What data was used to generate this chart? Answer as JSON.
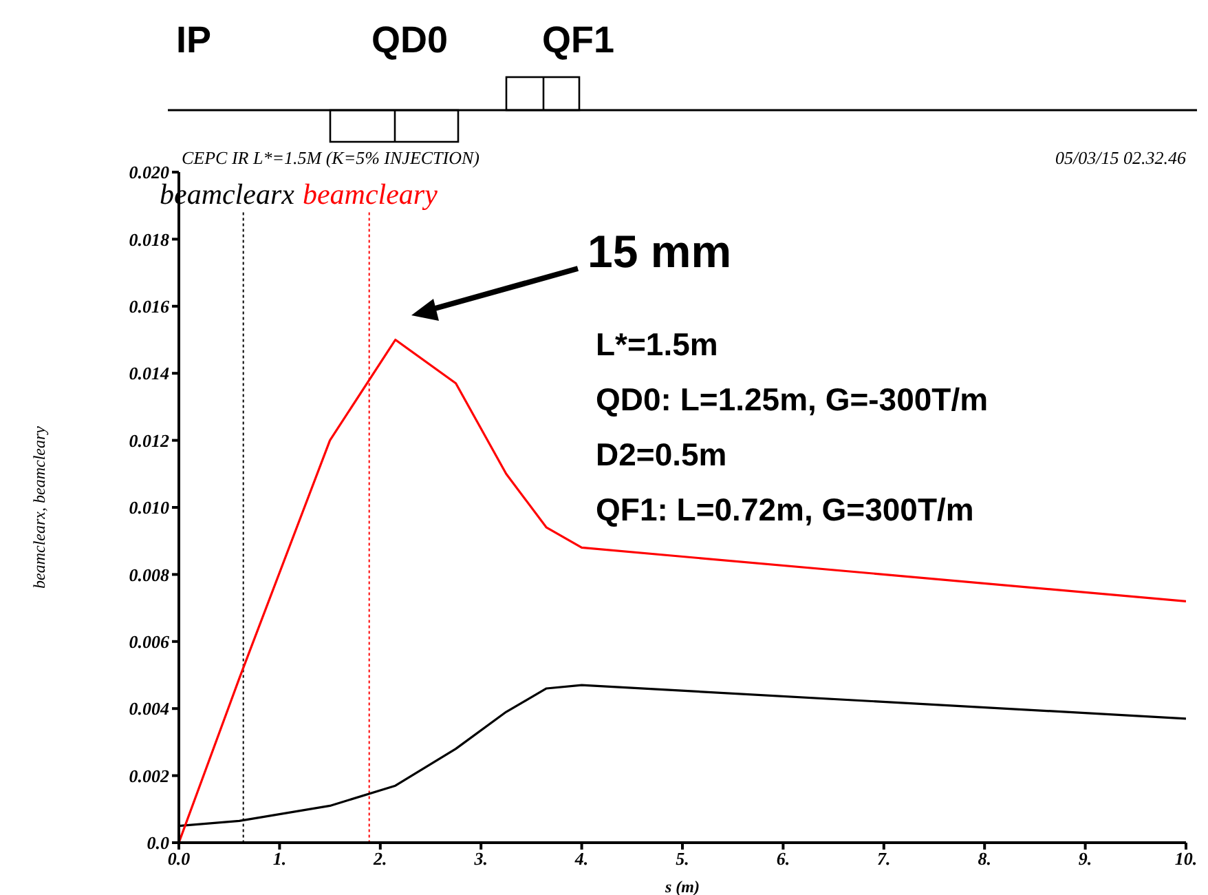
{
  "chart_data": {
    "type": "line",
    "title": "CEPC IR L*=1.5M (K=5% INJECTION)",
    "subtitle": "05/03/15 02.32.46",
    "xlabel": "s (m)",
    "ylabel": "beamclearx, beamcleary",
    "x": [
      0,
      0.6,
      1.5,
      2.15,
      2.75,
      3.25,
      3.65,
      4.0,
      10
    ],
    "series": [
      {
        "name": "beamclearx",
        "color": "#000000",
        "values": [
          0.0005,
          0.00065,
          0.0011,
          0.0017,
          0.0028,
          0.0039,
          0.0046,
          0.0047,
          0.0037
        ]
      },
      {
        "name": "beamcleary",
        "color": "#ff0000",
        "values": [
          0,
          0.0049,
          0.012,
          0.015,
          0.0137,
          0.011,
          0.0094,
          0.0088,
          0.0072
        ]
      }
    ],
    "xlim": [
      0,
      10
    ],
    "ylim": [
      0,
      0.02
    ],
    "xticks": [
      {
        "value": 0,
        "label": "0.0"
      },
      {
        "value": 1,
        "label": "1."
      },
      {
        "value": 2,
        "label": "2."
      },
      {
        "value": 3,
        "label": "3."
      },
      {
        "value": 4,
        "label": "4."
      },
      {
        "value": 5,
        "label": "5."
      },
      {
        "value": 6,
        "label": "6."
      },
      {
        "value": 7,
        "label": "7."
      },
      {
        "value": 8,
        "label": "8."
      },
      {
        "value": 9,
        "label": "9."
      },
      {
        "value": 10,
        "label": "10."
      }
    ],
    "yticks": [
      {
        "value": 0,
        "label": "0.0"
      },
      {
        "value": 0.002,
        "label": "0.002"
      },
      {
        "value": 0.004,
        "label": "0.004"
      },
      {
        "value": 0.006,
        "label": "0.006"
      },
      {
        "value": 0.008,
        "label": "0.008"
      },
      {
        "value": 0.01,
        "label": "0.010"
      },
      {
        "value": 0.012,
        "label": "0.012"
      },
      {
        "value": 0.014,
        "label": "0.014"
      },
      {
        "value": 0.016,
        "label": "0.016"
      },
      {
        "value": 0.018,
        "label": "0.018"
      },
      {
        "value": 0.02,
        "label": "0.020"
      }
    ],
    "ref_lines": [
      {
        "axis": "x",
        "value": 0.64,
        "color": "#000000",
        "line_style": "dotted"
      },
      {
        "axis": "x",
        "value": 1.89,
        "color": "#ff0000",
        "line_style": "dotted"
      }
    ],
    "legend": "top left",
    "annotations": [
      "IP",
      "QD0",
      "QF1",
      "15 mm",
      "L*=1.5m",
      "QD0: L=1.25m, G=-300T/m",
      "D2=0.5m",
      "QF1: L=0.72m, G=300T/m"
    ]
  }
}
